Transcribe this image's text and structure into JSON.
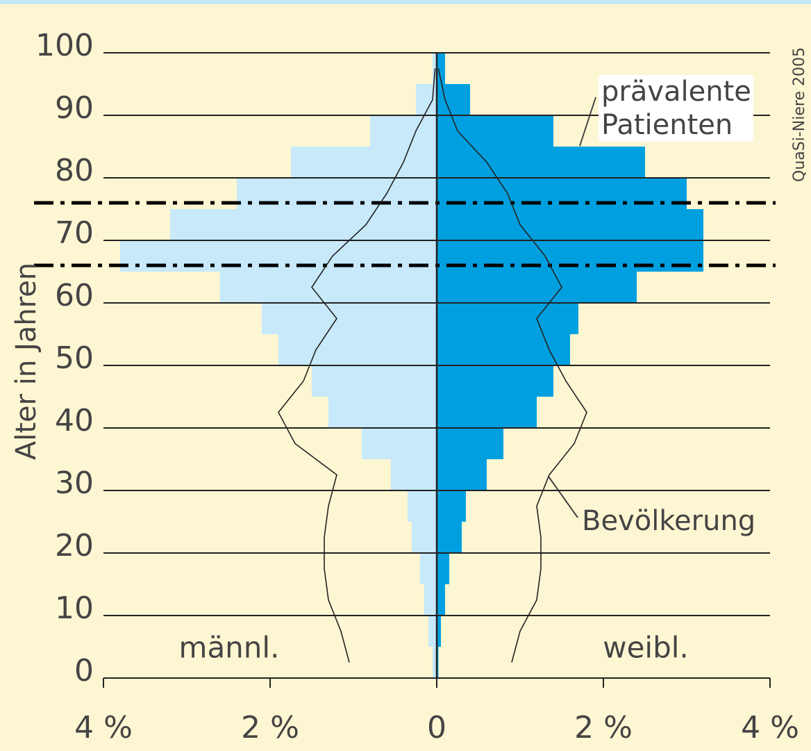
{
  "chart_data": {
    "type": "pyramid",
    "source": "QuaSi-Niere 2005",
    "y_label": "Alter in Jahren",
    "sides": [
      "männl.",
      "weibl."
    ],
    "age_bins": [
      0,
      5,
      10,
      15,
      20,
      25,
      30,
      35,
      40,
      45,
      50,
      55,
      60,
      65,
      70,
      75,
      80,
      85,
      90,
      95,
      100
    ],
    "series": [
      {
        "name": "prävalente Patienten",
        "style": "bars",
        "colors": [
          "#c7e9fa",
          "#00a0e0"
        ],
        "male": [
          0.05,
          0.1,
          0.15,
          0.2,
          0.3,
          0.35,
          0.55,
          0.9,
          1.3,
          1.5,
          1.9,
          2.1,
          2.6,
          3.8,
          3.2,
          2.4,
          1.75,
          0.8,
          0.25,
          0.05
        ],
        "female": [
          0.02,
          0.05,
          0.1,
          0.15,
          0.3,
          0.35,
          0.6,
          0.8,
          1.2,
          1.4,
          1.6,
          1.7,
          2.4,
          3.2,
          3.2,
          3.0,
          2.5,
          1.4,
          0.4,
          0.1
        ]
      },
      {
        "name": "Bevölkerung",
        "style": "line",
        "colors": [
          "#222222",
          "#222222"
        ],
        "male": [
          1.05,
          1.15,
          1.3,
          1.35,
          1.35,
          1.3,
          1.2,
          1.7,
          1.9,
          1.6,
          1.45,
          1.2,
          1.5,
          1.25,
          0.85,
          0.6,
          0.4,
          0.25,
          0.05,
          0.02
        ],
        "female": [
          0.9,
          1.0,
          1.2,
          1.25,
          1.25,
          1.2,
          1.35,
          1.65,
          1.8,
          1.55,
          1.35,
          1.2,
          1.5,
          1.3,
          1.0,
          0.85,
          0.6,
          0.25,
          0.1,
          0.02
        ]
      }
    ],
    "reference_lines": [
      66,
      76
    ],
    "xlim": [
      -4,
      4
    ],
    "xticks": [
      {
        "value": -4,
        "label": "4 %"
      },
      {
        "value": -2,
        "label": "2 %"
      },
      0,
      {
        "value": 2,
        "label": "2 %"
      },
      {
        "value": 4,
        "label": "4 %"
      }
    ],
    "ylim": [
      0,
      100
    ],
    "yticks": [
      0,
      10,
      20,
      30,
      40,
      50,
      60,
      70,
      80,
      90,
      100
    ],
    "grid": true
  }
}
